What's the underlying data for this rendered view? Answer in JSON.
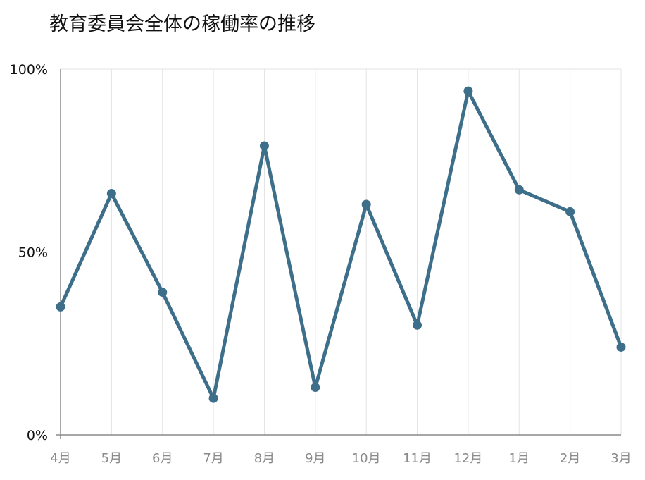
{
  "chart_data": {
    "type": "line",
    "title": "教育委員会全体の稼働率の推移",
    "categories": [
      "4月",
      "5月",
      "6月",
      "7月",
      "8月",
      "9月",
      "10月",
      "11月",
      "12月",
      "1月",
      "2月",
      "3月"
    ],
    "series": [
      {
        "values": [
          35,
          66,
          39,
          10,
          79,
          13,
          63,
          30,
          94,
          67,
          61,
          24
        ],
        "color": "#3d6e8a"
      }
    ],
    "ylim": [
      0,
      100
    ],
    "yticks": [
      {
        "value": 0,
        "label": "0%"
      },
      {
        "value": 50,
        "label": "50%"
      },
      {
        "value": 100,
        "label": "100%"
      }
    ],
    "grid": true,
    "gridlines_per_category": true,
    "legend": "none"
  }
}
